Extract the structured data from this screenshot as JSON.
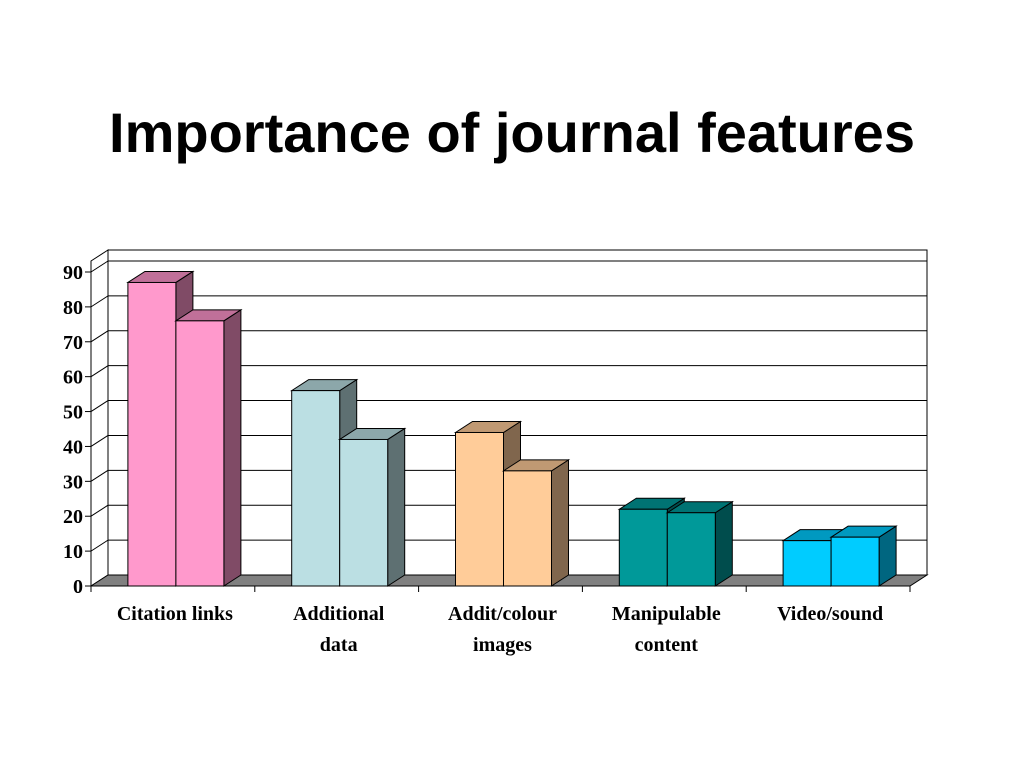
{
  "title": "Importance of journal features",
  "chart_data": {
    "type": "bar",
    "title": "Importance of journal features",
    "categories": [
      "Citation links",
      "Additional data",
      "Addit/colour images",
      "Manipulable content",
      "Video/sound"
    ],
    "category_lines": [
      [
        "Citation links"
      ],
      [
        "Additional",
        "data"
      ],
      [
        "Addit/colour",
        "images"
      ],
      [
        "Manipulable",
        "content"
      ],
      [
        "Video/sound"
      ]
    ],
    "series": [
      {
        "values": [
          87,
          56,
          44,
          22,
          13
        ]
      },
      {
        "values": [
          76,
          42,
          33,
          21,
          14
        ]
      }
    ],
    "colors": [
      {
        "front": "#ff99cc",
        "top": "#c07099",
        "side": "#804b66"
      },
      {
        "front": "#bbdfe3",
        "top": "#8ca7aa",
        "side": "#5e7072"
      },
      {
        "front": "#ffcc99",
        "top": "#c09973",
        "side": "#80664d"
      },
      {
        "front": "#009999",
        "top": "#007373",
        "side": "#004d4d"
      },
      {
        "front": "#00ccff",
        "top": "#0099c0",
        "side": "#006680"
      }
    ],
    "ylim": [
      0,
      90
    ],
    "yticks": [
      0,
      10,
      20,
      30,
      40,
      50,
      60,
      70,
      80,
      90
    ],
    "xlabel": "",
    "ylabel": "",
    "grid": true,
    "floor_color": "#808080"
  }
}
